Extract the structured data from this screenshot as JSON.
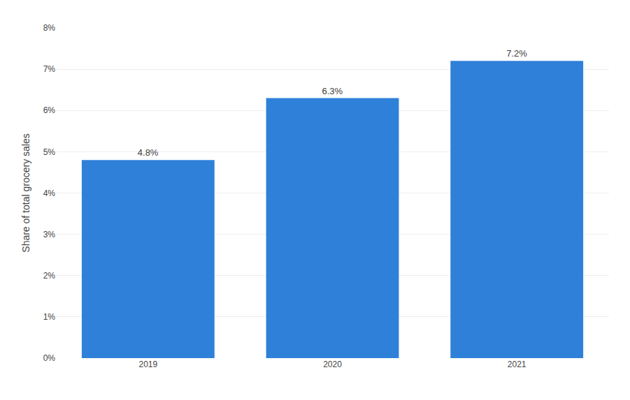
{
  "chart_data": {
    "type": "bar",
    "ylabel": "Share of total grocery sales",
    "categories": [
      "2019",
      "2020",
      "2021"
    ],
    "values": [
      4.8,
      6.3,
      7.2
    ],
    "value_labels": [
      "4.8%",
      "6.3%",
      "7.2%"
    ],
    "data_labels": true,
    "color": "#2f80d9",
    "ylim": [
      0,
      8
    ],
    "yticks": [
      {
        "value": 0,
        "label": "0%"
      },
      {
        "value": 1,
        "label": "1%"
      },
      {
        "value": 2,
        "label": "2%"
      },
      {
        "value": 3,
        "label": "3%"
      },
      {
        "value": 4,
        "label": "4%"
      },
      {
        "value": 5,
        "label": "5%"
      },
      {
        "value": 6,
        "label": "6%"
      },
      {
        "value": 7,
        "label": "7%"
      },
      {
        "value": 8,
        "label": "8%"
      }
    ],
    "grid": true
  }
}
